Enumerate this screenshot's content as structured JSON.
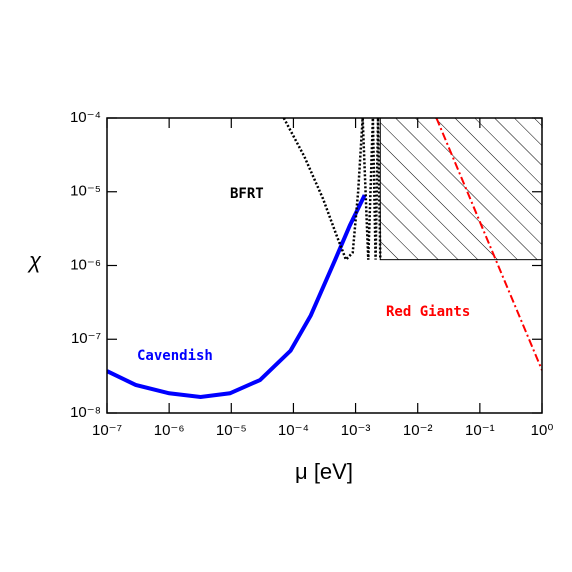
{
  "chart_data": {
    "type": "line",
    "xlabel": "μ [eV]",
    "ylabel": "χ",
    "log_x": true,
    "log_y": true,
    "xlim": [
      1e-07,
      1
    ],
    "ylim": [
      1e-08,
      0.0001
    ],
    "xticks": [
      {
        "value": 1e-07,
        "label": "10⁻⁷"
      },
      {
        "value": 1e-06,
        "label": "10⁻⁶"
      },
      {
        "value": 1e-05,
        "label": "10⁻⁵"
      },
      {
        "value": 0.0001,
        "label": "10⁻⁴"
      },
      {
        "value": 0.001,
        "label": "10⁻³"
      },
      {
        "value": 0.01,
        "label": "10⁻²"
      },
      {
        "value": 0.1,
        "label": "10⁻¹"
      },
      {
        "value": 1,
        "label": "10⁰"
      }
    ],
    "yticks": [
      {
        "value": 1e-08,
        "label": "10⁻⁸"
      },
      {
        "value": 1e-07,
        "label": "10⁻⁷"
      },
      {
        "value": 1e-06,
        "label": "10⁻⁶"
      },
      {
        "value": 1e-05,
        "label": "10⁻⁵"
      },
      {
        "value": 0.0001,
        "label": "10⁻⁴"
      }
    ],
    "series": [
      {
        "name": "Cavendish",
        "color": "#0000ff",
        "style": "solid",
        "x": [
          1e-07,
          2.9e-07,
          1e-06,
          3.2e-06,
          9.5e-06,
          2.9e-05,
          9e-05,
          0.00019,
          0.00047,
          0.00081,
          0.0014
        ],
        "values": [
          3.7e-08,
          2.4e-08,
          1.85e-08,
          1.65e-08,
          1.85e-08,
          2.8e-08,
          7e-08,
          2.1e-07,
          1.2e-06,
          3.5e-06,
          9e-06
        ]
      },
      {
        "name": "BFRT",
        "color": "#000000",
        "style": "dotted",
        "x": [
          7e-05,
          0.00015,
          0.0003,
          0.0005,
          0.0007,
          0.0009,
          0.0011,
          0.0013,
          0.0016,
          0.0019,
          0.0021,
          0.0023,
          0.0025
        ],
        "values": [
          0.0001,
          3e-05,
          8e-06,
          2.5e-06,
          1.2e-06,
          1.5e-06,
          1e-05,
          0.0001,
          1.2e-06,
          0.0001,
          1.2e-06,
          0.0001,
          1.2e-06
        ]
      },
      {
        "name": "Red Giants",
        "color": "#ff0000",
        "style": "dashdot",
        "x": [
          0.02,
          1
        ],
        "values": [
          0.0001,
          3.8e-08
        ]
      }
    ],
    "region": {
      "x": [
        0.0025,
        1
      ],
      "values": [
        1.2e-06,
        0.0001
      ]
    }
  }
}
